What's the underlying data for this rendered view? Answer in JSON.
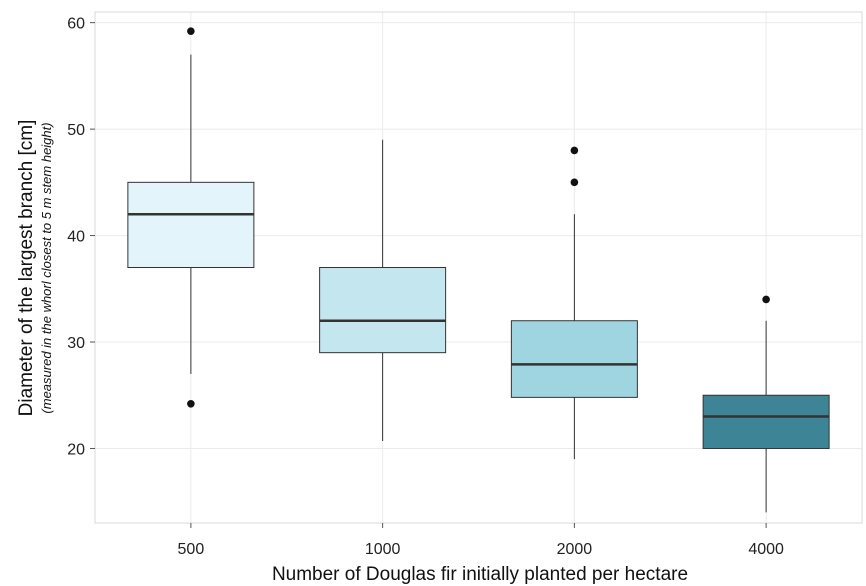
{
  "chart_data": {
    "type": "boxplot",
    "title": "",
    "xlabel": "Number of Douglas fir initially planted per hectare",
    "ylabel": "Diameter of the largest branch [cm]",
    "ylabel_sub": "(measured in the whorl closest to 5 m stem height)",
    "categories": [
      "500",
      "1000",
      "2000",
      "4000"
    ],
    "ylim": [
      13,
      61
    ],
    "yticks": [
      20,
      30,
      40,
      50,
      60
    ],
    "grid": true,
    "boxes": [
      {
        "category": "500",
        "whisker_low": 27,
        "q1": 37,
        "median": 42,
        "q3": 45,
        "whisker_high": 57,
        "outliers": [
          59.2,
          24.2
        ],
        "fill": "#e3f4fa"
      },
      {
        "category": "1000",
        "whisker_low": 20.7,
        "q1": 29,
        "median": 32,
        "q3": 37,
        "whisker_high": 49,
        "outliers": [],
        "fill": "#c3e6ef"
      },
      {
        "category": "2000",
        "whisker_low": 19,
        "q1": 24.8,
        "median": 27.9,
        "q3": 32,
        "whisker_high": 42,
        "outliers": [
          48,
          45
        ],
        "fill": "#9fd4e1"
      },
      {
        "category": "4000",
        "whisker_low": 14,
        "q1": 20,
        "median": 23,
        "q3": 25,
        "whisker_high": 32,
        "outliers": [
          34
        ],
        "fill": "#3e8497"
      }
    ]
  }
}
